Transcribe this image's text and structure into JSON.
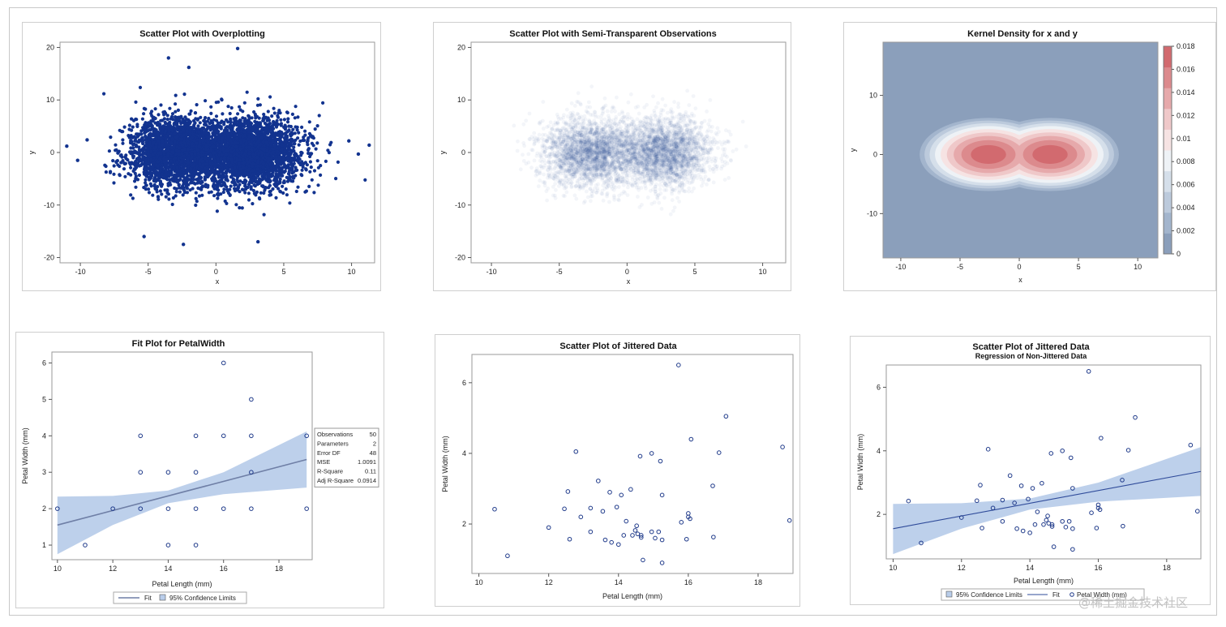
{
  "colors": {
    "marker": "#1f3a8a",
    "dense": "#12338f",
    "band": "#b9cdea",
    "fitline": "#6f7fa6",
    "density_bg": "#8b9fbb"
  },
  "chart_data": [
    {
      "id": "overplot",
      "type": "scatter",
      "title": "Scatter Plot with Overplotting",
      "xlabel": "x",
      "ylabel": "y",
      "xlim": [
        -11.5,
        11.7
      ],
      "ylim": [
        -21,
        21
      ],
      "xticks": [
        -10,
        -5,
        0,
        5,
        10
      ],
      "yticks": [
        -20,
        -10,
        0,
        10,
        20
      ],
      "clusters": [
        {
          "cx": -2.7,
          "cy": 0,
          "sx": 1.8,
          "sy": 3.3
        },
        {
          "cx": 2.7,
          "cy": 0,
          "sx": 1.8,
          "sy": 3.3
        }
      ],
      "n_points": 5000,
      "outliers": [
        {
          "x": 1.6,
          "y": 19.8
        },
        {
          "x": -3.5,
          "y": 18.0
        },
        {
          "x": -2.0,
          "y": 16.2
        },
        {
          "x": -5.3,
          "y": -16.0
        },
        {
          "x": -2.4,
          "y": -17.5
        },
        {
          "x": 3.1,
          "y": -17.0
        },
        {
          "x": -11.0,
          "y": 1.2
        },
        {
          "x": 11.3,
          "y": 1.4
        },
        {
          "x": 10.5,
          "y": -0.3
        },
        {
          "x": -10.2,
          "y": -1.5
        },
        {
          "x": 9.8,
          "y": 2.2
        },
        {
          "x": -9.5,
          "y": 2.4
        }
      ]
    },
    {
      "id": "transparent",
      "type": "scatter",
      "title": "Scatter Plot with Semi-Transparent Observations",
      "xlabel": "x",
      "ylabel": "y",
      "xlim": [
        -11.5,
        11.7
      ],
      "ylim": [
        -21,
        21
      ],
      "xticks": [
        -10,
        -5,
        0,
        5,
        10
      ],
      "yticks": [
        -20,
        -10,
        0,
        10,
        20
      ],
      "opacity": 0.05
    },
    {
      "id": "kde",
      "type": "heatmap",
      "title": "Kernel Density for x and y",
      "xlabel": "x",
      "ylabel": "y",
      "xlim": [
        -11.5,
        11.7
      ],
      "ylim": [
        -17.5,
        19
      ],
      "xticks": [
        -10,
        -5,
        0,
        5,
        10
      ],
      "yticks": [
        -10,
        0,
        10
      ],
      "modes": [
        {
          "x": -2.6,
          "y": 0
        },
        {
          "x": 2.6,
          "y": 0
        }
      ],
      "legend_ticks": [
        "0.018",
        "0.016",
        "0.014",
        "0.012",
        "0.01",
        "0.008",
        "0.006",
        "0.004",
        "0.002",
        "0"
      ],
      "legend_min": 0,
      "legend_max": 0.018,
      "legend_colors": [
        "#8b9fbb",
        "#a3b5cd",
        "#bccadc",
        "#d5dfea",
        "#eef2f6",
        "#f6e3e3",
        "#efc8c9",
        "#e6a9ab",
        "#dc8a8d",
        "#d26a6f"
      ]
    },
    {
      "id": "fit",
      "type": "scatter",
      "title": "Fit Plot for PetalWidth",
      "xlabel": "Petal Length (mm)",
      "ylabel": "Petal Width (mm)",
      "xlim": [
        9.8,
        19.2
      ],
      "ylim": [
        0.6,
        6.3
      ],
      "xticks": [
        10,
        12,
        14,
        16,
        18
      ],
      "yticks": [
        1,
        2,
        3,
        4,
        5,
        6
      ],
      "points": [
        {
          "x": 10,
          "y": 2
        },
        {
          "x": 11,
          "y": 1
        },
        {
          "x": 12,
          "y": 2
        },
        {
          "x": 13,
          "y": 4
        },
        {
          "x": 13,
          "y": 3
        },
        {
          "x": 13,
          "y": 2
        },
        {
          "x": 14,
          "y": 3
        },
        {
          "x": 14,
          "y": 2
        },
        {
          "x": 14,
          "y": 1
        },
        {
          "x": 15,
          "y": 4
        },
        {
          "x": 15,
          "y": 3
        },
        {
          "x": 15,
          "y": 2
        },
        {
          "x": 15,
          "y": 1
        },
        {
          "x": 16,
          "y": 6
        },
        {
          "x": 16,
          "y": 4
        },
        {
          "x": 16,
          "y": 2
        },
        {
          "x": 17,
          "y": 5
        },
        {
          "x": 17,
          "y": 4
        },
        {
          "x": 17,
          "y": 3
        },
        {
          "x": 17,
          "y": 2
        },
        {
          "x": 19,
          "y": 4
        },
        {
          "x": 19,
          "y": 2
        }
      ],
      "fit": {
        "intercept": -0.45,
        "slope": 0.2
      },
      "band_upper": [
        {
          "x": 10,
          "y": 2.33
        },
        {
          "x": 12,
          "y": 2.35
        },
        {
          "x": 14,
          "y": 2.5
        },
        {
          "x": 16,
          "y": 3.0
        },
        {
          "x": 19,
          "y": 4.12
        }
      ],
      "band_lower": [
        {
          "x": 10,
          "y": 0.75
        },
        {
          "x": 12,
          "y": 1.55
        },
        {
          "x": 14,
          "y": 2.15
        },
        {
          "x": 16,
          "y": 2.4
        },
        {
          "x": 19,
          "y": 2.58
        }
      ],
      "stats": [
        {
          "label": "Observations",
          "value": "50"
        },
        {
          "label": "Parameters",
          "value": "2"
        },
        {
          "label": "Error DF",
          "value": "48"
        },
        {
          "label": "MSE",
          "value": "1.0091"
        },
        {
          "label": "R-Square",
          "value": "0.11"
        },
        {
          "label": "Adj R-Square",
          "value": "0.0914"
        }
      ],
      "legend": [
        "Fit",
        "95% Confidence Limits"
      ]
    },
    {
      "id": "jitter",
      "type": "scatter",
      "title": "Scatter Plot of Jittered Data",
      "xlabel": "Petal Length (mm)",
      "ylabel": "Petal Width (mm)",
      "xlim": [
        9.8,
        19.0
      ],
      "ylim": [
        0.6,
        6.8
      ],
      "xticks": [
        10,
        12,
        14,
        16,
        18
      ],
      "yticks": [
        2,
        4,
        6
      ],
      "points": [
        {
          "x": 10.45,
          "y": 2.42
        },
        {
          "x": 10.82,
          "y": 1.1
        },
        {
          "x": 12.0,
          "y": 1.9
        },
        {
          "x": 12.45,
          "y": 2.43
        },
        {
          "x": 12.55,
          "y": 2.92
        },
        {
          "x": 12.6,
          "y": 1.57
        },
        {
          "x": 12.78,
          "y": 4.05
        },
        {
          "x": 12.92,
          "y": 2.2
        },
        {
          "x": 13.2,
          "y": 1.78
        },
        {
          "x": 13.2,
          "y": 2.45
        },
        {
          "x": 13.42,
          "y": 3.22
        },
        {
          "x": 13.55,
          "y": 2.36
        },
        {
          "x": 13.62,
          "y": 1.55
        },
        {
          "x": 13.75,
          "y": 2.9
        },
        {
          "x": 13.8,
          "y": 1.48
        },
        {
          "x": 13.95,
          "y": 2.48
        },
        {
          "x": 14.0,
          "y": 1.42
        },
        {
          "x": 14.08,
          "y": 2.82
        },
        {
          "x": 14.15,
          "y": 1.68
        },
        {
          "x": 14.22,
          "y": 2.08
        },
        {
          "x": 14.35,
          "y": 2.98
        },
        {
          "x": 14.4,
          "y": 1.68
        },
        {
          "x": 14.48,
          "y": 1.82
        },
        {
          "x": 14.52,
          "y": 1.95
        },
        {
          "x": 14.55,
          "y": 1.72
        },
        {
          "x": 14.62,
          "y": 3.92
        },
        {
          "x": 14.65,
          "y": 1.62
        },
        {
          "x": 14.65,
          "y": 1.68
        },
        {
          "x": 14.7,
          "y": 0.98
        },
        {
          "x": 14.95,
          "y": 1.78
        },
        {
          "x": 14.95,
          "y": 4.0
        },
        {
          "x": 15.05,
          "y": 1.6
        },
        {
          "x": 15.15,
          "y": 1.78
        },
        {
          "x": 15.2,
          "y": 3.78
        },
        {
          "x": 15.25,
          "y": 2.82
        },
        {
          "x": 15.25,
          "y": 1.55
        },
        {
          "x": 15.25,
          "y": 0.9
        },
        {
          "x": 15.72,
          "y": 6.5
        },
        {
          "x": 15.8,
          "y": 2.05
        },
        {
          "x": 15.95,
          "y": 1.57
        },
        {
          "x": 16.0,
          "y": 2.3
        },
        {
          "x": 16.0,
          "y": 2.2
        },
        {
          "x": 16.05,
          "y": 2.15
        },
        {
          "x": 16.08,
          "y": 4.4
        },
        {
          "x": 16.7,
          "y": 3.08
        },
        {
          "x": 16.72,
          "y": 1.63
        },
        {
          "x": 16.88,
          "y": 4.02
        },
        {
          "x": 17.08,
          "y": 5.05
        },
        {
          "x": 18.7,
          "y": 4.18
        },
        {
          "x": 18.9,
          "y": 2.1
        }
      ]
    },
    {
      "id": "jitter-regression",
      "type": "scatter",
      "title": "Scatter Plot of Jittered Data",
      "subtitle": "Regression of Non-Jittered Data",
      "xlabel": "Petal Length (mm)",
      "ylabel": "Petal Width (mm)",
      "xlim": [
        9.8,
        19.0
      ],
      "ylim": [
        0.6,
        6.7
      ],
      "xticks": [
        10,
        12,
        14,
        16,
        18
      ],
      "yticks": [
        2,
        4,
        6
      ],
      "fit": {
        "intercept": -0.45,
        "slope": 0.2
      },
      "band_upper": [
        {
          "x": 10,
          "y": 2.33
        },
        {
          "x": 12,
          "y": 2.35
        },
        {
          "x": 14,
          "y": 2.5
        },
        {
          "x": 16,
          "y": 3.0
        },
        {
          "x": 19,
          "y": 4.12
        }
      ],
      "band_lower": [
        {
          "x": 10,
          "y": 0.75
        },
        {
          "x": 12,
          "y": 1.55
        },
        {
          "x": 14,
          "y": 2.15
        },
        {
          "x": 16,
          "y": 2.4
        },
        {
          "x": 19,
          "y": 2.58
        }
      ],
      "legend": [
        "95% Confidence Limits",
        "Fit",
        "Petal Width (mm)"
      ]
    }
  ],
  "watermark": "@稀土掘金技术社区"
}
